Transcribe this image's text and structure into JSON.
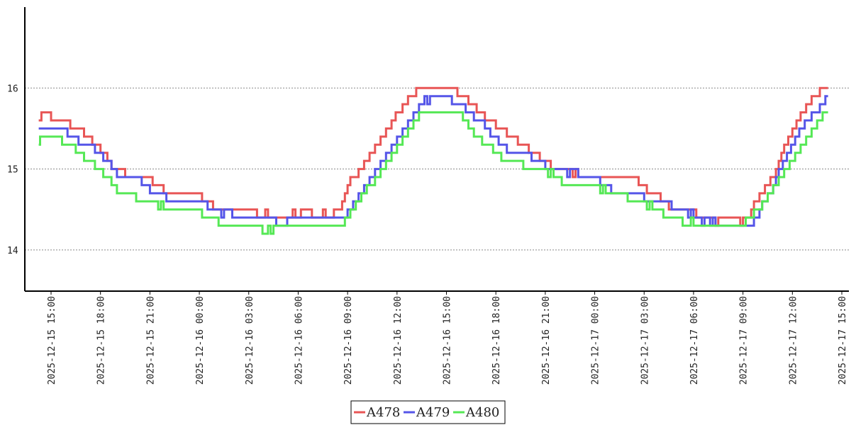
{
  "chart_data": {
    "type": "line",
    "step": true,
    "xlabel": "",
    "ylabel": "",
    "ylim": [
      13.5,
      17.0
    ],
    "yticks": [
      14,
      15,
      16
    ],
    "grid": "horizontal dotted at y ticks",
    "legend_position": "bottom-center",
    "x_tick_labels": [
      "2025-12-15 15:00",
      "2025-12-15 18:00",
      "2025-12-15 21:00",
      "2025-12-16 00:00",
      "2025-12-16 03:00",
      "2025-12-16 06:00",
      "2025-12-16 09:00",
      "2025-12-16 12:00",
      "2025-12-16 15:00",
      "2025-12-16 18:00",
      "2025-12-16 21:00",
      "2025-12-17 00:00",
      "2025-12-17 03:00",
      "2025-12-17 06:00",
      "2025-12-17 09:00",
      "2025-12-17 12:00",
      "2025-12-17 15:00"
    ],
    "series": [
      {
        "name": "A478",
        "color": "#e85555",
        "points": [
          [
            "2025-12-15 14:15",
            15.6
          ],
          [
            "2025-12-15 14:25",
            15.7
          ],
          [
            "2025-12-15 15:00",
            15.6
          ],
          [
            "2025-12-15 16:10",
            15.5
          ],
          [
            "2025-12-15 17:00",
            15.4
          ],
          [
            "2025-12-15 17:30",
            15.3
          ],
          [
            "2025-12-15 18:00",
            15.2
          ],
          [
            "2025-12-15 18:25",
            15.1
          ],
          [
            "2025-12-15 18:40",
            15.0
          ],
          [
            "2025-12-15 19:30",
            14.9
          ],
          [
            "2025-12-15 21:10",
            14.8
          ],
          [
            "2025-12-15 21:50",
            14.7
          ],
          [
            "2025-12-16 00:10",
            14.6
          ],
          [
            "2025-12-16 00:50",
            14.5
          ],
          [
            "2025-12-16 03:30",
            14.4
          ],
          [
            "2025-12-16 04:00",
            14.5
          ],
          [
            "2025-12-16 04:10",
            14.4
          ],
          [
            "2025-12-16 05:40",
            14.5
          ],
          [
            "2025-12-16 05:50",
            14.4
          ],
          [
            "2025-12-16 06:10",
            14.5
          ],
          [
            "2025-12-16 06:50",
            14.4
          ],
          [
            "2025-12-16 07:30",
            14.5
          ],
          [
            "2025-12-16 07:40",
            14.4
          ],
          [
            "2025-12-16 08:10",
            14.5
          ],
          [
            "2025-12-16 08:40",
            14.6
          ],
          [
            "2025-12-16 08:50",
            14.7
          ],
          [
            "2025-12-16 09:00",
            14.8
          ],
          [
            "2025-12-16 09:10",
            14.9
          ],
          [
            "2025-12-16 09:40",
            15.0
          ],
          [
            "2025-12-16 10:00",
            15.1
          ],
          [
            "2025-12-16 10:20",
            15.2
          ],
          [
            "2025-12-16 10:40",
            15.3
          ],
          [
            "2025-12-16 11:00",
            15.4
          ],
          [
            "2025-12-16 11:20",
            15.5
          ],
          [
            "2025-12-16 11:40",
            15.6
          ],
          [
            "2025-12-16 11:55",
            15.7
          ],
          [
            "2025-12-16 12:20",
            15.8
          ],
          [
            "2025-12-16 12:40",
            15.9
          ],
          [
            "2025-12-16 13:10",
            16.0
          ],
          [
            "2025-12-16 15:40",
            15.9
          ],
          [
            "2025-12-16 16:20",
            15.8
          ],
          [
            "2025-12-16 16:50",
            15.7
          ],
          [
            "2025-12-16 17:20",
            15.6
          ],
          [
            "2025-12-16 18:00",
            15.5
          ],
          [
            "2025-12-16 18:40",
            15.4
          ],
          [
            "2025-12-16 19:20",
            15.3
          ],
          [
            "2025-12-16 20:00",
            15.2
          ],
          [
            "2025-12-16 20:40",
            15.1
          ],
          [
            "2025-12-16 21:20",
            15.0
          ],
          [
            "2025-12-16 22:40",
            14.9
          ],
          [
            "2025-12-16 22:50",
            15.0
          ],
          [
            "2025-12-16 23:00",
            14.9
          ],
          [
            "2025-12-17 02:40",
            14.8
          ],
          [
            "2025-12-17 03:10",
            14.7
          ],
          [
            "2025-12-17 04:00",
            14.6
          ],
          [
            "2025-12-17 04:30",
            14.5
          ],
          [
            "2025-12-17 06:10",
            14.4
          ],
          [
            "2025-12-17 07:20",
            14.3
          ],
          [
            "2025-12-17 07:30",
            14.4
          ],
          [
            "2025-12-17 08:50",
            14.3
          ],
          [
            "2025-12-17 09:00",
            14.4
          ],
          [
            "2025-12-17 09:30",
            14.5
          ],
          [
            "2025-12-17 09:40",
            14.6
          ],
          [
            "2025-12-17 10:00",
            14.7
          ],
          [
            "2025-12-17 10:20",
            14.8
          ],
          [
            "2025-12-17 10:40",
            14.9
          ],
          [
            "2025-12-17 11:00",
            15.0
          ],
          [
            "2025-12-17 11:10",
            15.1
          ],
          [
            "2025-12-17 11:20",
            15.2
          ],
          [
            "2025-12-17 11:30",
            15.3
          ],
          [
            "2025-12-17 11:45",
            15.4
          ],
          [
            "2025-12-17 12:00",
            15.5
          ],
          [
            "2025-12-17 12:15",
            15.6
          ],
          [
            "2025-12-17 12:30",
            15.7
          ],
          [
            "2025-12-17 12:50",
            15.8
          ],
          [
            "2025-12-17 13:10",
            15.9
          ],
          [
            "2025-12-17 13:40",
            16.0
          ],
          [
            "2025-12-17 14:10",
            16.0
          ]
        ]
      },
      {
        "name": "A479",
        "color": "#5555e8",
        "points": [
          [
            "2025-12-15 14:15",
            15.5
          ],
          [
            "2025-12-15 16:00",
            15.4
          ],
          [
            "2025-12-15 16:40",
            15.3
          ],
          [
            "2025-12-15 17:40",
            15.2
          ],
          [
            "2025-12-15 18:10",
            15.1
          ],
          [
            "2025-12-15 18:40",
            15.0
          ],
          [
            "2025-12-15 19:00",
            14.9
          ],
          [
            "2025-12-15 20:30",
            14.8
          ],
          [
            "2025-12-15 21:00",
            14.7
          ],
          [
            "2025-12-15 22:00",
            14.6
          ],
          [
            "2025-12-16 00:30",
            14.5
          ],
          [
            "2025-12-16 01:20",
            14.4
          ],
          [
            "2025-12-16 01:30",
            14.5
          ],
          [
            "2025-12-16 02:00",
            14.4
          ],
          [
            "2025-12-16 04:40",
            14.3
          ],
          [
            "2025-12-16 05:20",
            14.4
          ],
          [
            "2025-12-16 09:00",
            14.5
          ],
          [
            "2025-12-16 09:20",
            14.6
          ],
          [
            "2025-12-16 09:40",
            14.7
          ],
          [
            "2025-12-16 10:00",
            14.8
          ],
          [
            "2025-12-16 10:20",
            14.9
          ],
          [
            "2025-12-16 10:40",
            15.0
          ],
          [
            "2025-12-16 11:00",
            15.1
          ],
          [
            "2025-12-16 11:20",
            15.2
          ],
          [
            "2025-12-16 11:40",
            15.3
          ],
          [
            "2025-12-16 12:00",
            15.4
          ],
          [
            "2025-12-16 12:20",
            15.5
          ],
          [
            "2025-12-16 12:40",
            15.6
          ],
          [
            "2025-12-16 13:00",
            15.7
          ],
          [
            "2025-12-16 13:20",
            15.8
          ],
          [
            "2025-12-16 13:40",
            15.9
          ],
          [
            "2025-12-16 13:50",
            15.8
          ],
          [
            "2025-12-16 14:00",
            15.9
          ],
          [
            "2025-12-16 15:20",
            15.8
          ],
          [
            "2025-12-16 16:10",
            15.7
          ],
          [
            "2025-12-16 16:40",
            15.6
          ],
          [
            "2025-12-16 17:20",
            15.5
          ],
          [
            "2025-12-16 17:40",
            15.4
          ],
          [
            "2025-12-16 18:10",
            15.3
          ],
          [
            "2025-12-16 18:40",
            15.2
          ],
          [
            "2025-12-16 20:10",
            15.1
          ],
          [
            "2025-12-16 21:00",
            15.0
          ],
          [
            "2025-12-16 22:20",
            14.9
          ],
          [
            "2025-12-16 22:30",
            15.0
          ],
          [
            "2025-12-16 23:00",
            14.9
          ],
          [
            "2025-12-17 00:20",
            14.8
          ],
          [
            "2025-12-17 01:00",
            14.7
          ],
          [
            "2025-12-17 03:00",
            14.6
          ],
          [
            "2025-12-17 04:40",
            14.5
          ],
          [
            "2025-12-17 05:40",
            14.4
          ],
          [
            "2025-12-17 05:50",
            14.5
          ],
          [
            "2025-12-17 06:00",
            14.4
          ],
          [
            "2025-12-17 06:30",
            14.3
          ],
          [
            "2025-12-17 06:40",
            14.4
          ],
          [
            "2025-12-17 07:00",
            14.3
          ],
          [
            "2025-12-17 07:10",
            14.4
          ],
          [
            "2025-12-17 07:20",
            14.3
          ],
          [
            "2025-12-17 09:40",
            14.4
          ],
          [
            "2025-12-17 10:00",
            14.5
          ],
          [
            "2025-12-17 10:10",
            14.6
          ],
          [
            "2025-12-17 10:30",
            14.7
          ],
          [
            "2025-12-17 10:50",
            14.8
          ],
          [
            "2025-12-17 11:00",
            14.9
          ],
          [
            "2025-12-17 11:10",
            15.0
          ],
          [
            "2025-12-17 11:25",
            15.1
          ],
          [
            "2025-12-17 11:40",
            15.2
          ],
          [
            "2025-12-17 11:55",
            15.3
          ],
          [
            "2025-12-17 12:10",
            15.4
          ],
          [
            "2025-12-17 12:25",
            15.5
          ],
          [
            "2025-12-17 12:45",
            15.6
          ],
          [
            "2025-12-17 13:10",
            15.7
          ],
          [
            "2025-12-17 13:40",
            15.8
          ],
          [
            "2025-12-17 14:00",
            15.9
          ],
          [
            "2025-12-17 14:10",
            15.9
          ]
        ]
      },
      {
        "name": "A480",
        "color": "#55e855",
        "points": [
          [
            "2025-12-15 14:15",
            15.3
          ],
          [
            "2025-12-15 14:20",
            15.4
          ],
          [
            "2025-12-15 15:40",
            15.3
          ],
          [
            "2025-12-15 16:30",
            15.2
          ],
          [
            "2025-12-15 17:00",
            15.1
          ],
          [
            "2025-12-15 17:40",
            15.0
          ],
          [
            "2025-12-15 18:10",
            14.9
          ],
          [
            "2025-12-15 18:40",
            14.8
          ],
          [
            "2025-12-15 19:00",
            14.7
          ],
          [
            "2025-12-15 20:10",
            14.6
          ],
          [
            "2025-12-15 21:30",
            14.5
          ],
          [
            "2025-12-15 21:40",
            14.6
          ],
          [
            "2025-12-15 21:50",
            14.5
          ],
          [
            "2025-12-16 00:10",
            14.4
          ],
          [
            "2025-12-16 01:10",
            14.3
          ],
          [
            "2025-12-16 03:50",
            14.2
          ],
          [
            "2025-12-16 04:10",
            14.3
          ],
          [
            "2025-12-16 04:20",
            14.2
          ],
          [
            "2025-12-16 04:30",
            14.3
          ],
          [
            "2025-12-16 08:50",
            14.4
          ],
          [
            "2025-12-16 09:10",
            14.5
          ],
          [
            "2025-12-16 09:30",
            14.6
          ],
          [
            "2025-12-16 09:50",
            14.7
          ],
          [
            "2025-12-16 10:10",
            14.8
          ],
          [
            "2025-12-16 10:40",
            14.9
          ],
          [
            "2025-12-16 11:00",
            15.0
          ],
          [
            "2025-12-16 11:20",
            15.1
          ],
          [
            "2025-12-16 11:40",
            15.2
          ],
          [
            "2025-12-16 12:00",
            15.3
          ],
          [
            "2025-12-16 12:20",
            15.4
          ],
          [
            "2025-12-16 12:40",
            15.5
          ],
          [
            "2025-12-16 13:00",
            15.6
          ],
          [
            "2025-12-16 13:20",
            15.7
          ],
          [
            "2025-12-16 16:00",
            15.6
          ],
          [
            "2025-12-16 16:20",
            15.5
          ],
          [
            "2025-12-16 16:40",
            15.4
          ],
          [
            "2025-12-16 17:10",
            15.3
          ],
          [
            "2025-12-16 17:50",
            15.2
          ],
          [
            "2025-12-16 18:20",
            15.1
          ],
          [
            "2025-12-16 19:40",
            15.0
          ],
          [
            "2025-12-16 21:10",
            14.9
          ],
          [
            "2025-12-16 21:20",
            15.0
          ],
          [
            "2025-12-16 21:30",
            14.9
          ],
          [
            "2025-12-16 22:00",
            14.8
          ],
          [
            "2025-12-17 00:20",
            14.7
          ],
          [
            "2025-12-17 00:30",
            14.8
          ],
          [
            "2025-12-17 00:40",
            14.7
          ],
          [
            "2025-12-17 02:00",
            14.6
          ],
          [
            "2025-12-17 03:10",
            14.5
          ],
          [
            "2025-12-17 03:20",
            14.6
          ],
          [
            "2025-12-17 03:30",
            14.5
          ],
          [
            "2025-12-17 04:10",
            14.4
          ],
          [
            "2025-12-17 05:20",
            14.3
          ],
          [
            "2025-12-17 05:50",
            14.4
          ],
          [
            "2025-12-17 06:00",
            14.3
          ],
          [
            "2025-12-17 09:10",
            14.4
          ],
          [
            "2025-12-17 09:40",
            14.5
          ],
          [
            "2025-12-17 10:10",
            14.6
          ],
          [
            "2025-12-17 10:30",
            14.7
          ],
          [
            "2025-12-17 10:50",
            14.8
          ],
          [
            "2025-12-17 11:10",
            14.9
          ],
          [
            "2025-12-17 11:30",
            15.0
          ],
          [
            "2025-12-17 11:50",
            15.1
          ],
          [
            "2025-12-17 12:10",
            15.2
          ],
          [
            "2025-12-17 12:30",
            15.3
          ],
          [
            "2025-12-17 12:50",
            15.4
          ],
          [
            "2025-12-17 13:10",
            15.5
          ],
          [
            "2025-12-17 13:30",
            15.6
          ],
          [
            "2025-12-17 13:50",
            15.7
          ],
          [
            "2025-12-17 14:10",
            15.7
          ]
        ]
      }
    ]
  }
}
